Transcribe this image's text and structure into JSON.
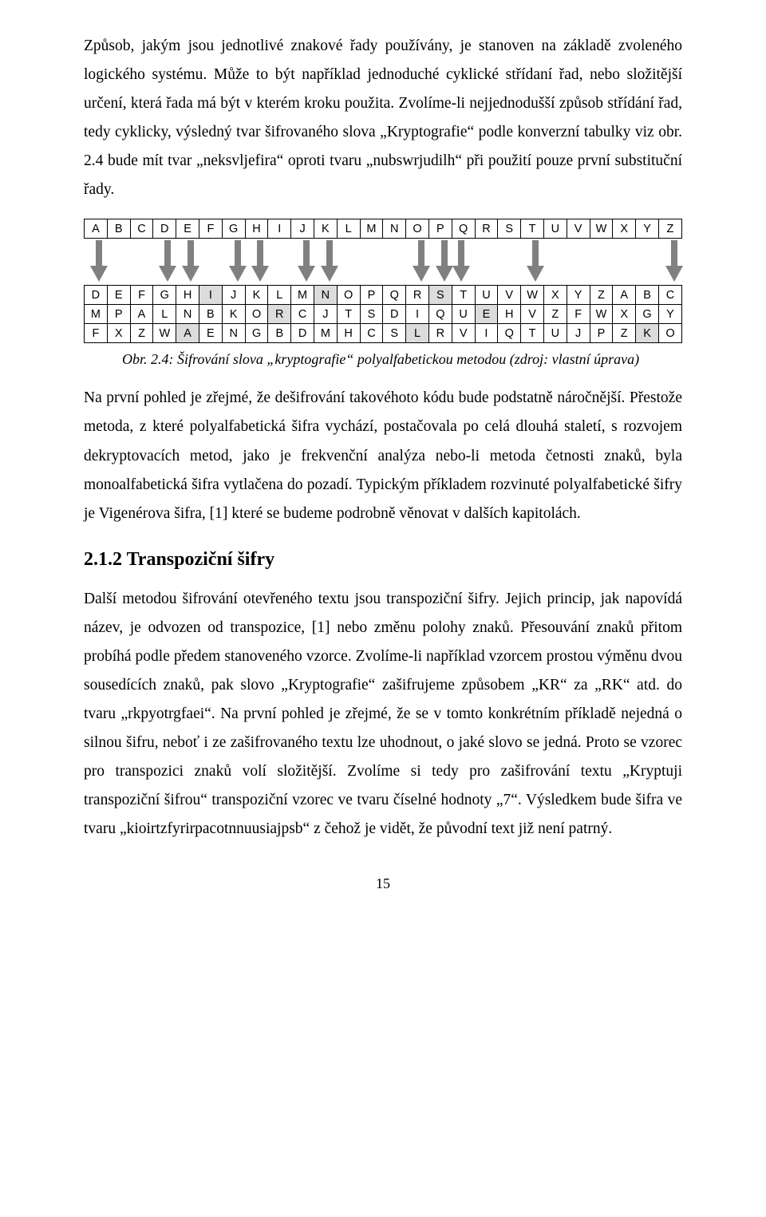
{
  "para1": "Způsob, jakým jsou jednotlivé znakové řady používány, je stanoven na základě zvoleného logického systému. Může to být například jednoduché cyklické střídaní řad, nebo složitější určení, která řada má být v kterém kroku použita. Zvolíme-li nejjednodušší způsob střídání řad, tedy cyklicky, výsledný tvar šifrovaného slova „Kryptografie“ podle konverzní tabulky viz obr. 2.4 bude mít tvar „neksvljefira“ oproti tvaru „nubswrjudilh“ při použití pouze první substituční řady.",
  "alphabet": [
    "A",
    "B",
    "C",
    "D",
    "E",
    "F",
    "G",
    "H",
    "I",
    "J",
    "K",
    "L",
    "M",
    "N",
    "O",
    "P",
    "Q",
    "R",
    "S",
    "T",
    "U",
    "V",
    "W",
    "X",
    "Y",
    "Z"
  ],
  "row1": [
    "D",
    "E",
    "F",
    "G",
    "H",
    "I",
    "J",
    "K",
    "L",
    "M",
    "N",
    "O",
    "P",
    "Q",
    "R",
    "S",
    "T",
    "U",
    "V",
    "W",
    "X",
    "Y",
    "Z",
    "A",
    "B",
    "C"
  ],
  "row2": [
    "M",
    "P",
    "A",
    "L",
    "N",
    "B",
    "K",
    "O",
    "R",
    "C",
    "J",
    "T",
    "S",
    "D",
    "I",
    "Q",
    "U",
    "E",
    "H",
    "V",
    "Z",
    "F",
    "W",
    "X",
    "G",
    "Y"
  ],
  "row3": [
    "F",
    "X",
    "Z",
    "W",
    "A",
    "E",
    "N",
    "G",
    "B",
    "D",
    "M",
    "H",
    "C",
    "S",
    "L",
    "R",
    "V",
    "I",
    "Q",
    "T",
    "U",
    "J",
    "P",
    "Z",
    "K",
    "O"
  ],
  "highlights": {
    "row1": [
      5,
      10,
      15
    ],
    "row2": [
      8,
      17
    ],
    "row3": [
      4,
      14,
      24
    ]
  },
  "arrows": {
    "positions_pct": [
      2.6,
      14.0,
      17.9,
      25.7,
      29.5,
      37.2,
      41.0,
      56.4,
      60.2,
      63.0,
      75.5,
      98.6
    ],
    "color": "#808080"
  },
  "caption": "Obr. 2.4: Šifrování slova „kryptografie“ polyalfabetickou metodou (zdroj: vlastní úprava)",
  "para2": "Na první pohled je zřejmé, že dešifrování takovéhoto kódu bude podstatně náročnější. Přestože metoda, z které polyalfabetická šifra vychází, postačovala po celá dlouhá staletí, s rozvojem dekryptovacích metod, jako je frekvenční analýza nebo-li metoda četnosti znaků, byla monoalfabetická šifra vytlačena do pozadí. Typickým příkladem rozvinuté polyalfabetické šifry je Vigenérova šifra, [1] které se budeme podrobně věnovat v dalších kapitolách.",
  "heading": "2.1.2  Transpoziční šifry",
  "para3": "Další metodou šifrování otevřeného textu jsou transpoziční šifry. Jejich princip, jak napovídá název, je odvozen od transpozice, [1] nebo změnu polohy znaků. Přesouvání znaků přitom probíhá podle předem stanoveného vzorce. Zvolíme-li například vzorcem prostou výměnu dvou sousedících znaků, pak slovo „Kryptografie“ zašifrujeme způsobem „KR“ za „RK“ atd. do tvaru „rkpyotrgfaei“. Na první pohled je zřejmé, že se v tomto konkrétním příkladě nejedná o silnou šifru, neboť i ze zašifrovaného textu lze uhodnout, o jaké slovo se jedná. Proto se vzorec pro transpozici znaků volí složitější. Zvolíme si tedy pro zašifrování textu „Kryptuji transpoziční šifrou“ transpoziční vzorec ve tvaru číselné hodnoty „7“. Výsledkem bude šifra ve tvaru „kioirtzfyrirpacotnnuusiajpsb“ z čehož je vidět, že původní text již není patrný.",
  "pagenum": "15"
}
